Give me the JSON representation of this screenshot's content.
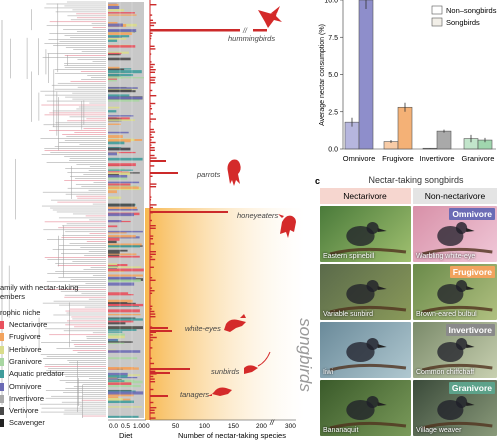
{
  "panel_a": {
    "clade_labels": {
      "hummingbirds": "hummingbirds",
      "parrots": "parrots",
      "honeyeaters": "honeyeaters",
      "white_eyes": "white-eyes",
      "sunbirds": "sunbirds",
      "tanagers": "tanagers",
      "songbirds": "songbirds"
    },
    "axis_diet_label": "Diet",
    "axis_diet_ticks": [
      "0.0",
      "0.5",
      "1.00"
    ],
    "axis_count_label": "Number of nectar-taking species",
    "axis_count_ticks": [
      "0",
      "50",
      "100",
      "150",
      "200",
      "300"
    ],
    "axis_break_mark": "//",
    "legend": {
      "title_line1": "amily with nectar-taking",
      "title_line2": "embers",
      "niche_title": "rophic niche",
      "items": [
        {
          "label": "Nectarivore",
          "color": "#e8515e"
        },
        {
          "label": "Frugivore",
          "color": "#f2a35e"
        },
        {
          "label": "Herbivore",
          "color": "#d9dc8b"
        },
        {
          "label": "Granivore",
          "color": "#a8d6a2"
        },
        {
          "label": "Aquatic predator",
          "color": "#3f9c9b"
        },
        {
          "label": "Omnivore",
          "color": "#6b6bb5"
        },
        {
          "label": "Invertivore",
          "color": "#a9a9a9"
        },
        {
          "label": "Vertivore",
          "color": "#4a4a4a"
        },
        {
          "label": "Scavenger",
          "color": "#222222"
        }
      ]
    }
  },
  "panel_b": {
    "chart_data": {
      "type": "bar",
      "ylabel": "Average nectar consumption (%)",
      "ytick_labels": [
        "0.0",
        "2.5",
        "5.0",
        "7.5",
        "10.0"
      ],
      "ylim": [
        0,
        10
      ],
      "categories": [
        "Omnivore",
        "Frugivore",
        "Invertivore",
        "Granivore"
      ],
      "series": [
        {
          "name": "Non–songbirds",
          "values": [
            1.8,
            0.5,
            0.05,
            0.7
          ]
        },
        {
          "name": "Songbirds",
          "values": [
            10.0,
            2.8,
            1.2,
            0.6
          ]
        }
      ],
      "errors": {
        "Non–songbirds": [
          0.3,
          0.1,
          0.02,
          0.25
        ],
        "Songbirds": [
          0.6,
          0.3,
          0.1,
          0.15
        ]
      },
      "colors": {
        "Omnivore": "#7a7ac2",
        "Frugivore": "#f2a35e",
        "Invertivore": "#9a9a9a",
        "Granivore": "#8fcfa0"
      },
      "legend_position": "top-right"
    }
  },
  "panel_c": {
    "panel_letter": "c",
    "title": "Nectar-taking songbirds",
    "col_left": "Nectarivore",
    "col_right": "Non-nectarivore",
    "badges": [
      {
        "label": "Omnivore",
        "color": "#6b6bb5"
      },
      {
        "label": "Frugivore",
        "color": "#f2a35e"
      },
      {
        "label": "Invertivore",
        "color": "#8a8a8a"
      },
      {
        "label": "Granivore",
        "color": "#5da28a"
      }
    ],
    "photos_left": [
      "Eastern spinebill",
      "Variable sunbird",
      "Iiwi",
      "Bananaquit"
    ],
    "photos_right": [
      "Warbling white-eye",
      "Brown-eared bulbul",
      "Common chiffchaff",
      "Village weaver"
    ]
  }
}
